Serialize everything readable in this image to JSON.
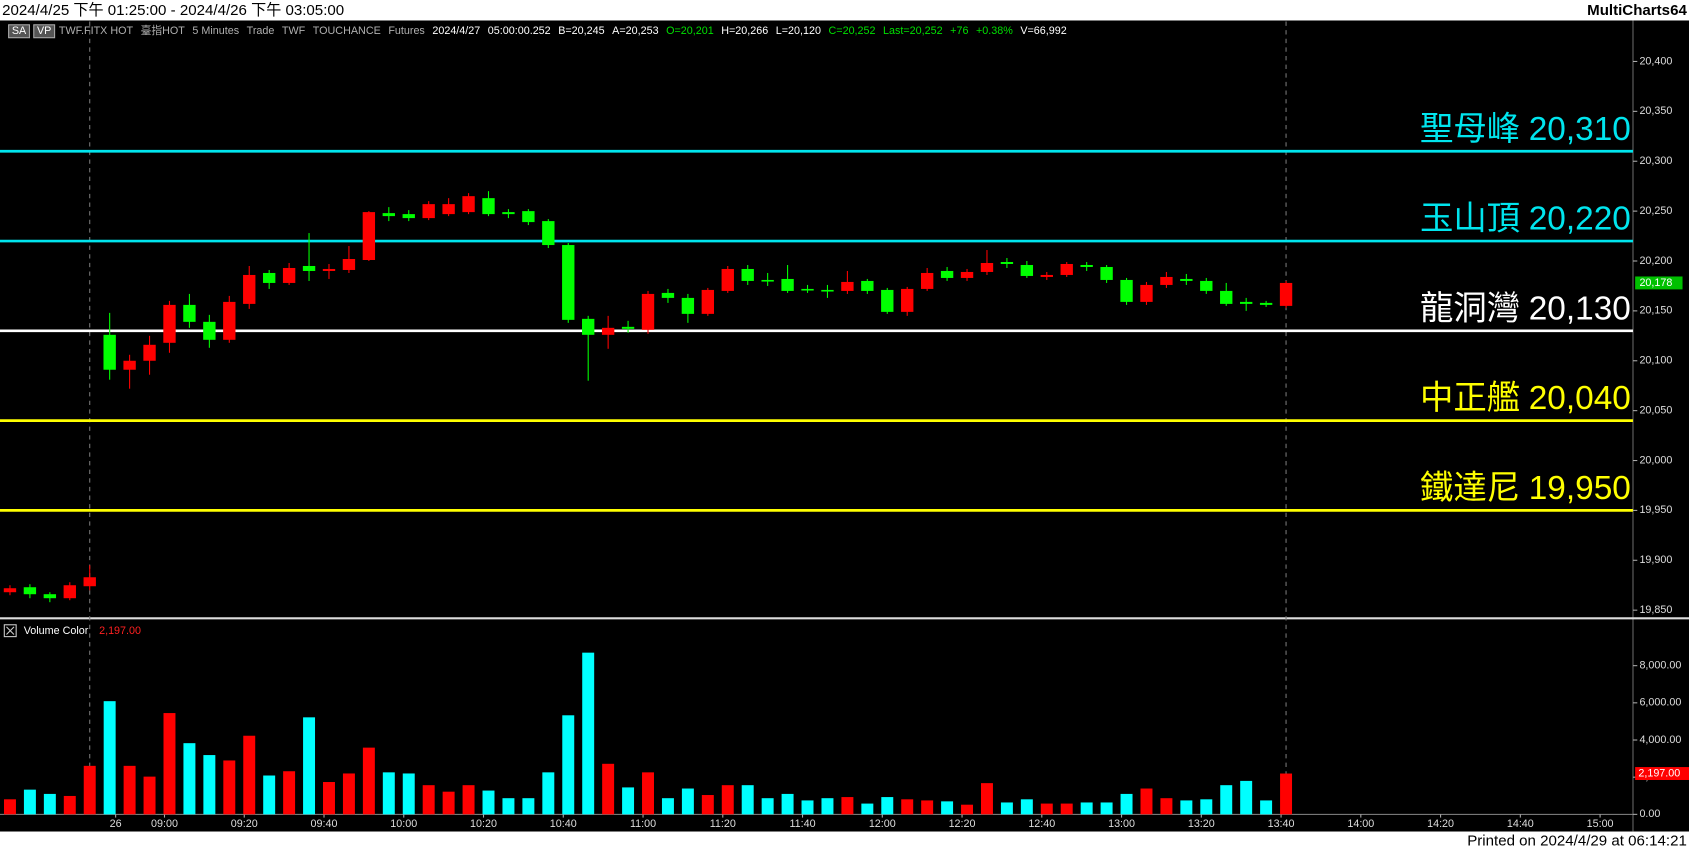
{
  "header": {
    "range": "2024/4/25 下午 01:25:00 - 2024/4/26 下午 03:05:00",
    "brand": "MultiCharts64",
    "printed": "Printed on 2024/4/29 at 06:14:21"
  },
  "status": [
    {
      "text": "SA",
      "color": "#ffffff",
      "box": true
    },
    {
      "text": "VP",
      "color": "#ffffff",
      "box": true
    },
    {
      "text": "TWF.FITX HOT",
      "color": "#b0b0b0",
      "box": false
    },
    {
      "text": "臺指HOT",
      "color": "#b0b0b0",
      "box": false
    },
    {
      "text": "5 Minutes",
      "color": "#b0b0b0",
      "box": false
    },
    {
      "text": "Trade",
      "color": "#b0b0b0",
      "box": false
    },
    {
      "text": "TWF",
      "color": "#b0b0b0",
      "box": false
    },
    {
      "text": "TOUCHANCE",
      "color": "#b0b0b0",
      "box": false
    },
    {
      "text": "Futures",
      "color": "#b0b0b0",
      "box": false
    },
    {
      "text": "2024/4/27",
      "color": "#ffffff",
      "box": false
    },
    {
      "text": "05:00:00.252",
      "color": "#ffffff",
      "box": false
    },
    {
      "text": "B=20,245",
      "color": "#ffffff",
      "box": false
    },
    {
      "text": "A=20,253",
      "color": "#ffffff",
      "box": false
    },
    {
      "text": "O=20,201",
      "color": "#00e000",
      "box": false
    },
    {
      "text": "H=20,266",
      "color": "#ffffff",
      "box": false
    },
    {
      "text": "L=20,120",
      "color": "#ffffff",
      "box": false
    },
    {
      "text": "C=20,252",
      "color": "#00e000",
      "box": false
    },
    {
      "text": "Last=20,252",
      "color": "#00e000",
      "box": false
    },
    {
      "text": "+76",
      "color": "#00e000",
      "box": false
    },
    {
      "text": "+0.38%",
      "color": "#00e000",
      "box": false
    },
    {
      "text": "V=66,992",
      "color": "#ffffff",
      "box": false
    }
  ],
  "chart_data": [
    {
      "type": "candlestick",
      "up_color": "#ff0000",
      "down_color": "#00ff00",
      "x": [
        -5,
        -4,
        -3,
        -2,
        -1,
        0,
        1,
        2,
        3,
        4,
        5,
        6,
        7,
        8,
        9,
        10,
        11,
        12,
        13,
        14,
        15,
        16,
        17,
        18,
        19,
        20,
        21,
        22,
        23,
        24,
        25,
        26,
        27,
        28,
        29,
        30,
        31,
        32,
        33,
        34,
        35,
        36,
        37,
        38,
        39,
        40,
        41,
        42,
        43,
        44,
        45,
        46,
        47,
        48,
        49,
        50,
        51,
        52,
        53,
        54,
        55,
        56,
        57,
        58,
        59
      ],
      "open": [
        19868,
        19873,
        19866,
        19862,
        19874,
        20126,
        20091,
        20100,
        20118,
        20156,
        20139,
        20121,
        20157,
        20188,
        20178,
        20195,
        20190,
        20191,
        20201,
        20248,
        20247,
        20243,
        20247,
        20249,
        20263,
        20249,
        20250,
        20240,
        20216,
        20142,
        20126,
        20134,
        20131,
        20168,
        20163,
        20147,
        20170,
        20192,
        20181,
        20182,
        20172,
        20171,
        20170,
        20180,
        20171,
        20149,
        20172,
        20190,
        20183,
        20189,
        20199,
        20196,
        20184,
        20186,
        20196,
        20194,
        20181,
        20159,
        20176,
        20182,
        20180,
        20170,
        20159,
        20158,
        20155
      ],
      "high": [
        19875,
        19876,
        19868,
        19878,
        19895,
        20148,
        20106,
        20125,
        20160,
        20167,
        20146,
        20165,
        20195,
        20191,
        20198,
        20228,
        20197,
        20215,
        20250,
        20254,
        20251,
        20260,
        20263,
        20268,
        20270,
        20252,
        20252,
        20242,
        20218,
        20145,
        20145,
        20140,
        20170,
        20172,
        20167,
        20173,
        20195,
        20196,
        20188,
        20196,
        20176,
        20176,
        20190,
        20182,
        20173,
        20174,
        20193,
        20194,
        20192,
        20211,
        20203,
        20200,
        20189,
        20199,
        20199,
        20196,
        20183,
        20179,
        20189,
        20187,
        20183,
        20178,
        20163,
        20160,
        20180
      ],
      "low": [
        19865,
        19862,
        19858,
        19860,
        19870,
        20081,
        20072,
        20086,
        20108,
        20133,
        20113,
        20118,
        20152,
        20172,
        20176,
        20180,
        20182,
        20188,
        20200,
        20240,
        20240,
        20241,
        20245,
        20247,
        20245,
        20243,
        20236,
        20213,
        20138,
        20080,
        20112,
        20128,
        20127,
        20158,
        20138,
        20145,
        20168,
        20176,
        20175,
        20168,
        20168,
        20163,
        20167,
        20167,
        20147,
        20145,
        20170,
        20180,
        20180,
        20186,
        20193,
        20183,
        20181,
        20184,
        20190,
        20178,
        20156,
        20156,
        20173,
        20176,
        20167,
        20155,
        20150,
        20154,
        20153
      ],
      "close": [
        19872,
        19866,
        19862,
        19875,
        19883,
        20091,
        20100,
        20116,
        20156,
        20139,
        20121,
        20159,
        20186,
        20178,
        20193,
        20190,
        20192,
        20202,
        20249,
        20245,
        20243,
        20257,
        20257,
        20265,
        20247,
        20247,
        20239,
        20216,
        20141,
        20126,
        20133,
        20132,
        20167,
        20163,
        20147,
        20171,
        20192,
        20180,
        20180,
        20170,
        20171,
        20170,
        20179,
        20170,
        20149,
        20172,
        20188,
        20183,
        20189,
        20198,
        20197,
        20185,
        20186,
        20197,
        20194,
        20181,
        20159,
        20176,
        20184,
        20180,
        20170,
        20157,
        20157,
        20156,
        20178
      ],
      "xlim": [
        -5.5,
        76.4
      ],
      "ylim": [
        19844,
        20440
      ],
      "yticks": [
        {
          "value": 19850,
          "label": "19,850"
        },
        {
          "value": 19900,
          "label": "19,900"
        },
        {
          "value": 19950,
          "label": "19,950"
        },
        {
          "value": 20000,
          "label": "20,000"
        },
        {
          "value": 20050,
          "label": "20,050"
        },
        {
          "value": 20100,
          "label": "20,100"
        },
        {
          "value": 20150,
          "label": "20,150"
        },
        {
          "value": 20200,
          "label": "20,200"
        },
        {
          "value": 20250,
          "label": "20,250"
        },
        {
          "value": 20300,
          "label": "20,300"
        },
        {
          "value": 20350,
          "label": "20,350"
        },
        {
          "value": 20400,
          "label": "20,400"
        }
      ],
      "session_breaks": [
        -1,
        59
      ],
      "levels": [
        {
          "name": "聖母峰",
          "value": 20310,
          "value_label": "20,310",
          "color": "#00e5ee"
        },
        {
          "name": "玉山頂",
          "value": 20220,
          "value_label": "20,220",
          "color": "#00e5ee"
        },
        {
          "name": "龍洞灣",
          "value": 20130,
          "value_label": "20,130",
          "color": "#ffffff"
        },
        {
          "name": "中正艦",
          "value": 20040,
          "value_label": "20,040",
          "color": "#ffff00"
        },
        {
          "name": "鐵達尼",
          "value": 19950,
          "value_label": "19,950",
          "color": "#ffff00"
        }
      ],
      "last": {
        "value": 20178,
        "label": "20,178",
        "color": "#00c000"
      }
    },
    {
      "type": "bar",
      "title": "Volume Color",
      "up_color": "#ff0000",
      "down_color": "#00ffff",
      "values": [
        810,
        1330,
        1100,
        990,
        2610,
        6090,
        2610,
        2030,
        5450,
        3830,
        3190,
        2900,
        4230,
        2090,
        2320,
        5220,
        1740,
        2200,
        3590,
        2260,
        2200,
        1570,
        1220,
        1570,
        1280,
        870,
        870,
        2260,
        5330,
        8700,
        2720,
        1450,
        2260,
        870,
        1390,
        1040,
        1570,
        1570,
        870,
        1100,
        750,
        870,
        930,
        580,
        930,
        810,
        750,
        700,
        520,
        1680,
        640,
        810,
        580,
        580,
        640,
        640,
        1100,
        1390,
        870,
        750,
        810,
        1570,
        1800,
        750,
        2197
      ],
      "ylim": [
        0,
        10200
      ],
      "yticks": [
        {
          "value": 0,
          "label": "0.00"
        },
        {
          "value": 2000,
          "label": "2,000.00"
        },
        {
          "value": 4000,
          "label": "4,000.00"
        },
        {
          "value": 6000,
          "label": "6,000.00"
        },
        {
          "value": 8000,
          "label": "8,000.00"
        }
      ],
      "xticks": [
        {
          "value": 0.3,
          "label": "26"
        },
        {
          "value": 2.75,
          "label": "09:00"
        },
        {
          "value": 6.75,
          "label": "09:20"
        },
        {
          "value": 10.75,
          "label": "09:40"
        },
        {
          "value": 14.75,
          "label": "10:00"
        },
        {
          "value": 18.75,
          "label": "10:20"
        },
        {
          "value": 22.75,
          "label": "10:40"
        },
        {
          "value": 26.75,
          "label": "11:00"
        },
        {
          "value": 30.75,
          "label": "11:20"
        },
        {
          "value": 34.75,
          "label": "11:40"
        },
        {
          "value": 38.75,
          "label": "12:00"
        },
        {
          "value": 42.75,
          "label": "12:20"
        },
        {
          "value": 46.75,
          "label": "12:40"
        },
        {
          "value": 50.75,
          "label": "13:00"
        },
        {
          "value": 54.75,
          "label": "13:20"
        },
        {
          "value": 58.75,
          "label": "13:40"
        },
        {
          "value": 62.75,
          "label": "14:00"
        },
        {
          "value": 66.75,
          "label": "14:20"
        },
        {
          "value": 70.75,
          "label": "14:40"
        },
        {
          "value": 74.75,
          "label": "15:00"
        }
      ],
      "last": {
        "value": 2197,
        "label": "2,197.00",
        "color": "#ff0000"
      }
    }
  ]
}
